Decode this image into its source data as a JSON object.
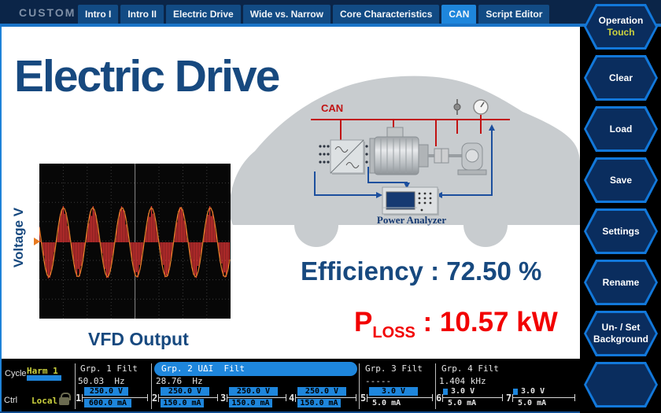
{
  "titlebar": {
    "custom_label": "CUSTOM",
    "tabs": [
      {
        "label": "Intro I",
        "active": false
      },
      {
        "label": "Intro II",
        "active": false
      },
      {
        "label": "Electric Drive",
        "active": false
      },
      {
        "label": "Wide vs. Narrow",
        "active": false
      },
      {
        "label": "Core Characteristics",
        "active": false
      },
      {
        "label": "CAN",
        "active": true
      },
      {
        "label": "Script Editor",
        "active": false
      }
    ]
  },
  "sidebar": {
    "buttons": [
      {
        "label": "Operation",
        "sub": "Touch"
      },
      {
        "label": "Clear",
        "sub": ""
      },
      {
        "label": "Load",
        "sub": ""
      },
      {
        "label": "Save",
        "sub": ""
      },
      {
        "label": "Settings",
        "sub": ""
      },
      {
        "label": "Rename",
        "sub": ""
      },
      {
        "label": "Un- / Set",
        "sub2": "Background"
      },
      {
        "label": "",
        "sub": ""
      }
    ]
  },
  "slide": {
    "title": "Electric Drive",
    "scope": {
      "ylabel": "Voltage V",
      "caption": "VFD Output"
    },
    "diagram": {
      "can_label": "CAN",
      "analyzer_label": "Power Analyzer"
    },
    "metrics": {
      "efficiency_label": "Efficiency :",
      "efficiency_value": "72.50 %",
      "ploss_base": "P",
      "ploss_sub": "LOSS",
      "ploss_value": ": 10.57 kW"
    }
  },
  "statusbar": {
    "cycle_label": "Cycle",
    "cycle_value": "Harm 1",
    "ctrl_label": "Ctrl",
    "ctrl_value": "Local",
    "groups": [
      {
        "name": "Grp. 1 Filt",
        "freq": "50.03  Hz"
      },
      {
        "name": "Grp. 2 UΔI  Filt",
        "freq": "28.76  Hz"
      },
      {
        "name": "Grp. 3 Filt",
        "freq": "-----"
      },
      {
        "name": "Grp. 4 Filt",
        "freq": "1.404 kHz"
      }
    ],
    "channels": [
      {
        "num": "1",
        "v": "250.0 V",
        "a": "600.0 mA"
      },
      {
        "num": "2",
        "v": "250.0 V",
        "a": "150.0 mA"
      },
      {
        "num": "3",
        "v": "250.0 V",
        "a": "150.0 mA"
      },
      {
        "num": "4",
        "v": "250.0 V",
        "a": "150.0 mA"
      },
      {
        "num": "5",
        "v": "3.0 V",
        "a": "5.0 mA"
      },
      {
        "num": "6",
        "v": "3.0 V",
        "a": "5.0 mA"
      },
      {
        "num": "7",
        "v": "3.0 V",
        "a": "5.0 mA"
      }
    ]
  }
}
